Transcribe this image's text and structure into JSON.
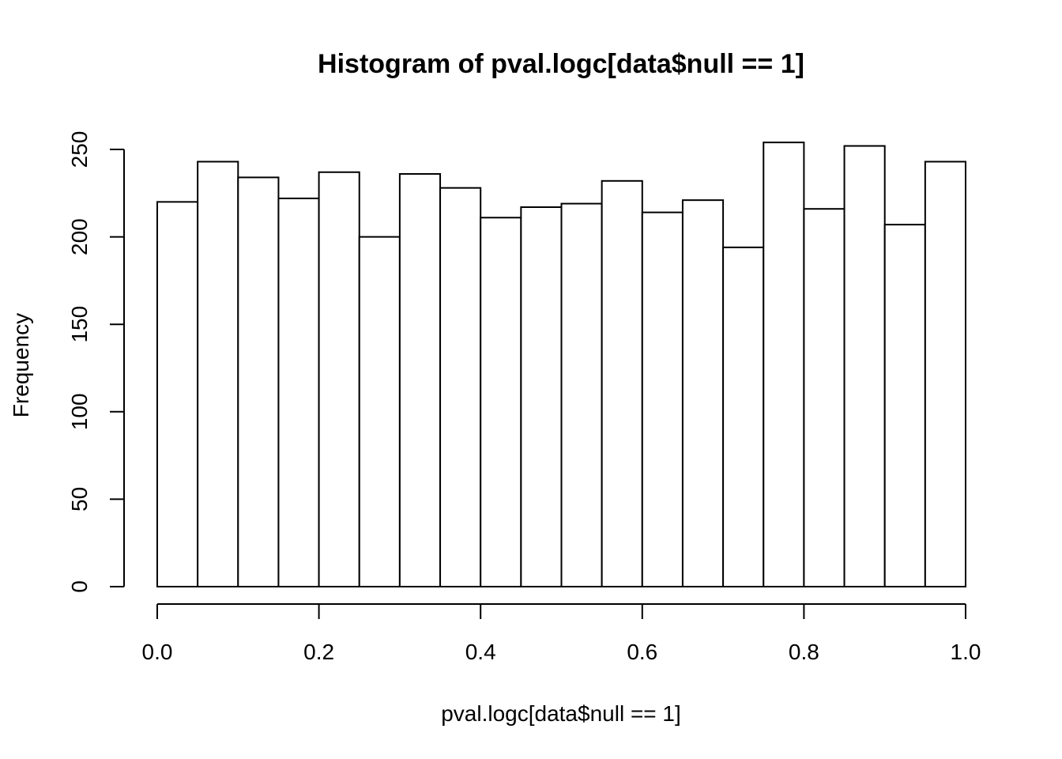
{
  "chart_data": {
    "type": "bar",
    "title": "Histogram of pval.logc[data$null == 1]",
    "xlabel": "pval.logc[data$null == 1]",
    "ylabel": "Frequency",
    "bin_edges": [
      0.0,
      0.05,
      0.1,
      0.15,
      0.2,
      0.25,
      0.3,
      0.35,
      0.4,
      0.45,
      0.5,
      0.55,
      0.6,
      0.65,
      0.7,
      0.75,
      0.8,
      0.85,
      0.9,
      0.95,
      1.0
    ],
    "values": [
      220,
      243,
      234,
      222,
      237,
      200,
      236,
      228,
      211,
      217,
      219,
      232,
      214,
      221,
      194,
      254,
      216,
      252,
      207,
      243
    ],
    "xlim": [
      0,
      1
    ],
    "ylim": [
      0,
      250
    ],
    "x_ticks": [
      {
        "value": 0.0,
        "label": "0.0"
      },
      {
        "value": 0.2,
        "label": "0.2"
      },
      {
        "value": 0.4,
        "label": "0.4"
      },
      {
        "value": 0.6,
        "label": "0.6"
      },
      {
        "value": 0.8,
        "label": "0.8"
      },
      {
        "value": 1.0,
        "label": "1.0"
      }
    ],
    "y_ticks": [
      {
        "value": 0,
        "label": "0"
      },
      {
        "value": 50,
        "label": "50"
      },
      {
        "value": 100,
        "label": "100"
      },
      {
        "value": 150,
        "label": "150"
      },
      {
        "value": 200,
        "label": "200"
      },
      {
        "value": 250,
        "label": "250"
      }
    ],
    "grid": false,
    "bar_fill": "#ffffff",
    "bar_stroke": "#000000"
  }
}
